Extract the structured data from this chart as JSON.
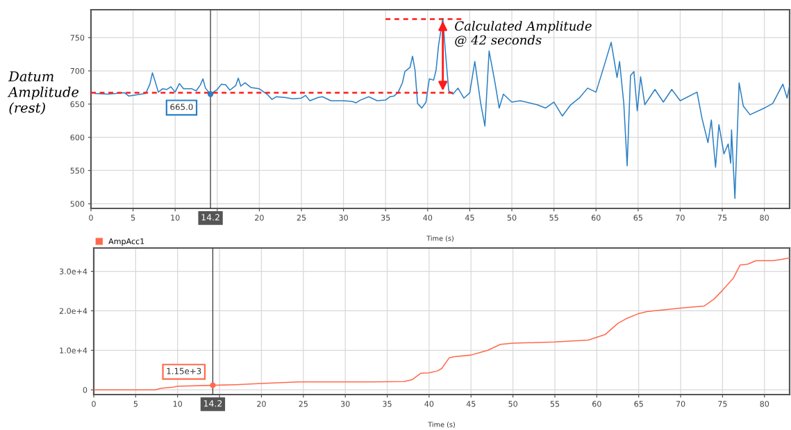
{
  "chart_data": [
    {
      "type": "line",
      "xlabel": "Time (s)",
      "xlim": [
        0,
        83
      ],
      "ylim": [
        493,
        792
      ],
      "xticks": [
        0,
        5,
        10,
        {
          "value": 15,
          "label": null
        },
        20,
        25,
        30,
        35,
        40,
        45,
        50,
        55,
        60,
        65,
        70,
        75,
        80
      ],
      "yticks": [
        500,
        550,
        600,
        650,
        700,
        750
      ],
      "grid": true,
      "legend": false,
      "series": [
        {
          "color": "#2a7fc4",
          "line_style": "solid",
          "x": [
            0.5,
            2,
            4,
            4.5,
            6.5,
            7.0,
            7.3,
            7.6,
            8.0,
            8.5,
            9,
            9.5,
            10,
            10.5,
            11,
            12,
            12.5,
            13,
            13.3,
            13.6,
            14.2,
            15,
            15.5,
            16,
            16.5,
            17.2,
            17.5,
            17.8,
            18.3,
            19,
            20,
            21,
            21.5,
            22,
            23,
            24,
            25,
            25.5,
            26,
            27,
            27.5,
            28.5,
            30,
            31,
            31.5,
            32,
            33,
            34,
            35,
            35.5,
            36,
            36.5,
            37,
            37.3,
            37.9,
            38.2,
            38.5,
            38.8,
            39.3,
            39.8,
            40.2,
            40.7,
            41,
            41.3,
            41.8,
            42.1,
            42.5,
            43,
            43.6,
            44.3,
            45,
            45.6,
            46.3,
            46.8,
            47.3,
            48,
            48.5,
            49,
            50,
            51,
            53,
            54,
            55,
            56,
            57,
            58,
            59,
            60,
            61,
            61.8,
            62.5,
            62.8,
            63.3,
            63.7,
            64.1,
            64.5,
            64.9,
            65.3,
            65.8,
            67,
            68,
            69,
            70,
            72,
            72.6,
            73.3,
            73.7,
            74.2,
            74.6,
            75.2,
            75.7,
            76,
            76.1,
            76.5,
            77,
            77.5,
            78.3,
            80,
            81,
            82.2,
            82.7,
            83
          ],
          "values": [
            666,
            665,
            667,
            662,
            666,
            680,
            697,
            685,
            668,
            673,
            672,
            676,
            668,
            681,
            673,
            673,
            670,
            679,
            688,
            674,
            665,
            672,
            680,
            679,
            671,
            678,
            689,
            677,
            682,
            675,
            673,
            664,
            657,
            661,
            660,
            658,
            659,
            663,
            655,
            660,
            661,
            655,
            655,
            654,
            652,
            656,
            661,
            655,
            656,
            661,
            662,
            668,
            682,
            699,
            705,
            722,
            701,
            651,
            644,
            653,
            688,
            686,
            701,
            739,
            779,
            730,
            670,
            665,
            674,
            659,
            667,
            714,
            651,
            617,
            730,
            682,
            644,
            665,
            653,
            655,
            649,
            644,
            653,
            632,
            649,
            659,
            674,
            668,
            709,
            743,
            690,
            714,
            651,
            557,
            693,
            699,
            640,
            691,
            649,
            672,
            653,
            672,
            655,
            668,
            628,
            592,
            626,
            555,
            619,
            575,
            590,
            561,
            611,
            508,
            682,
            647,
            634,
            644,
            651,
            680,
            659,
            678
          ]
        },
        {
          "color": "#ff1a1a",
          "line_style": "dashed",
          "x": [
            0,
            43
          ],
          "values": [
            667,
            667
          ]
        },
        {
          "color": "#ff1a1a",
          "line_style": "dashed",
          "x": [
            35,
            44
          ],
          "values": [
            778,
            778
          ]
        }
      ],
      "ref_lines": [
        {
          "axis": "x",
          "value": 14.2,
          "label": "14.2",
          "color": "#333333"
        }
      ],
      "annotations": [
        "Datum\nAmplitude\n(rest)",
        "Calculated Amplitude\n@ 42 seconds",
        {
          "text": "665.0",
          "x": 14.2,
          "y": 665
        }
      ]
    },
    {
      "type": "line",
      "xlabel": "Time (s)",
      "xlim": [
        0,
        83
      ],
      "ylim": [
        -1200,
        35900
      ],
      "xticks": [
        0,
        5,
        10,
        {
          "value": 15,
          "label": null
        },
        20,
        25,
        30,
        35,
        40,
        45,
        50,
        55,
        60,
        65,
        70,
        75,
        80
      ],
      "yticks": [
        0,
        {
          "value": 10000,
          "label": "1.0e+4"
        },
        {
          "value": 20000,
          "label": "2.0e+4"
        },
        {
          "value": 30000,
          "label": "3.0e+4"
        }
      ],
      "grid": true,
      "legend": "top left",
      "series": [
        {
          "name": "AmpAcc1",
          "color": "#ff6a4d",
          "line_style": "solid",
          "x": [
            0,
            7.3,
            8,
            9.5,
            10,
            14.2,
            17,
            20,
            22,
            24.5,
            33,
            37,
            38,
            39,
            40,
            41,
            41.5,
            42.4,
            43,
            45,
            47,
            48.5,
            50,
            55,
            59,
            61,
            62.5,
            63.5,
            65,
            66,
            70,
            72.8,
            74,
            75,
            76.3,
            77.1,
            78,
            79,
            81,
            82,
            83
          ],
          "values": [
            0,
            0,
            400,
            700,
            900,
            1150,
            1300,
            1600,
            1800,
            2000,
            2000,
            2100,
            2600,
            4200,
            4300,
            4800,
            5400,
            8100,
            8400,
            8800,
            10000,
            11500,
            11800,
            12100,
            12600,
            14000,
            16800,
            18000,
            19300,
            19800,
            20700,
            21200,
            23000,
            25200,
            28300,
            31600,
            31800,
            32700,
            32700,
            33000,
            33400
          ]
        }
      ],
      "ref_lines": [
        {
          "axis": "x",
          "value": 14.2,
          "label": "14.2",
          "color": "#333333"
        }
      ],
      "annotations": [
        {
          "text": "1.15e+3",
          "x": 14.2,
          "y": 1150
        }
      ]
    }
  ]
}
